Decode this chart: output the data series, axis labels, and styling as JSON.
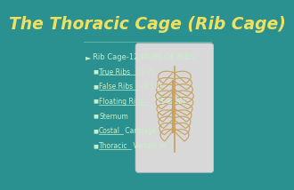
{
  "title": "The Thoracic Cage (Rib Cage)",
  "title_color": "#f0e060",
  "title_fontsize": 13.5,
  "bg_color": "#2a9090",
  "bullet_main": "Rib Cage-12 PAIRS OF RIBS",
  "bullets": [
    "True Ribs (1-7)",
    "False Ribs (9-10)",
    "Floating Ribs (11 & 12)",
    "Sternum",
    "Costal Cartilage",
    "Thoracic Vertebrae"
  ],
  "bullet_underlined": [
    "True Ribs",
    "False Ribs",
    "Floating Ribs",
    "Costal",
    "Thoracic"
  ],
  "text_color": "#c8f0c8",
  "bullet_fontsize": 5.5,
  "main_bullet_fontsize": 6.0,
  "rib_color": "#c8a060",
  "box_face": "#d8d8d8",
  "box_edge": "#c0c0c0"
}
